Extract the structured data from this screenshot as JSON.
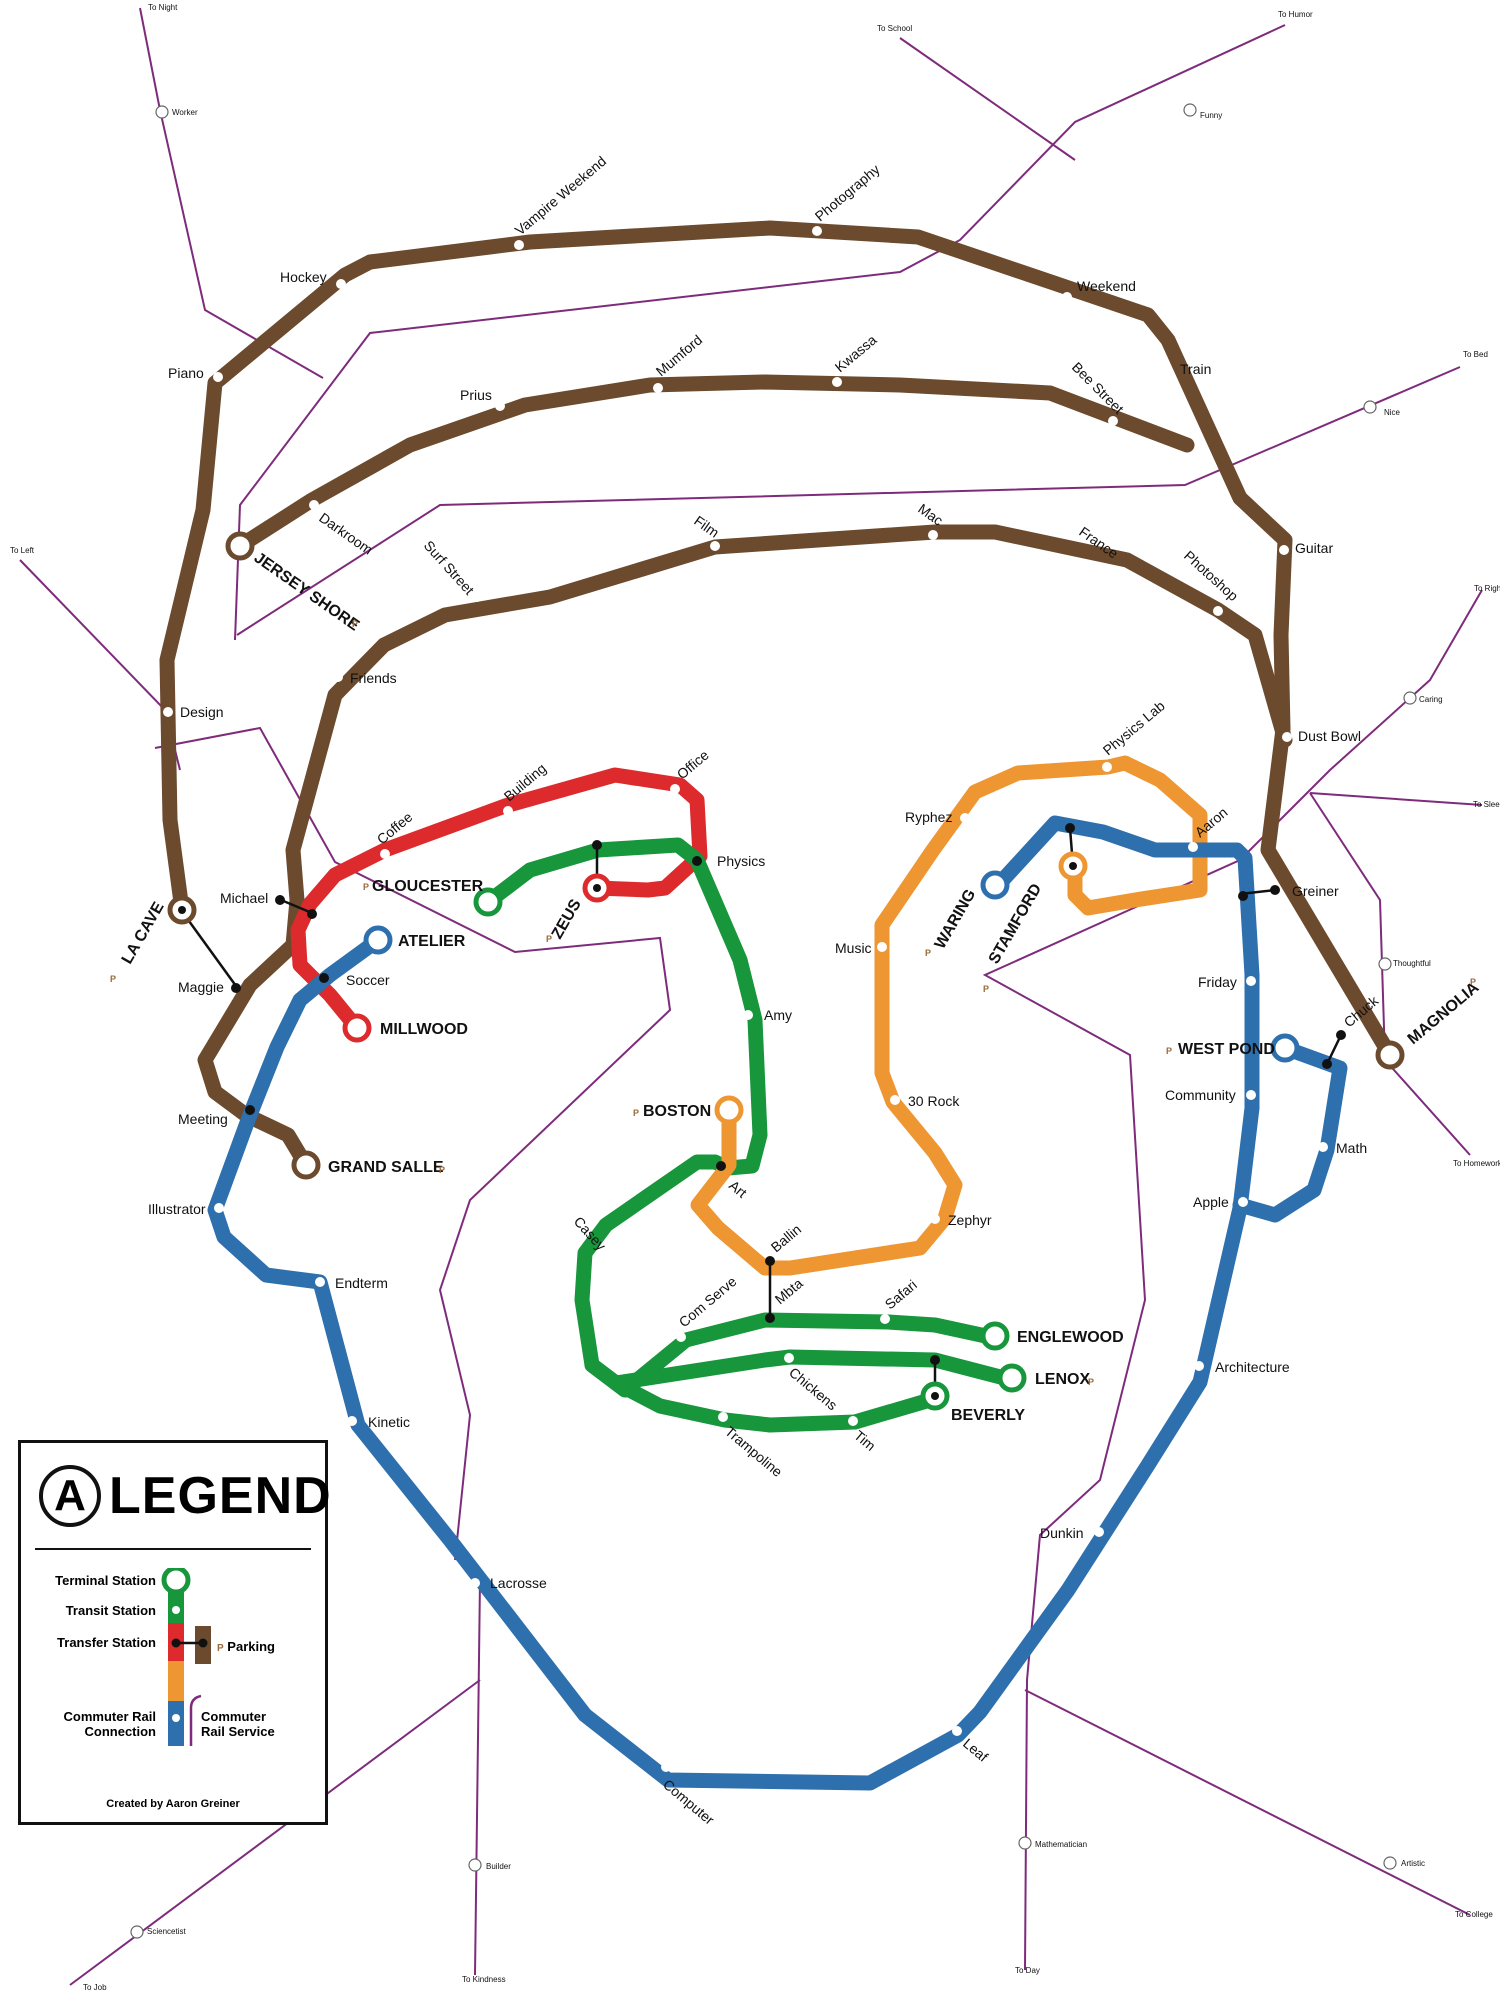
{
  "colors": {
    "brown": "#6b4a2e",
    "red": "#dd2a2c",
    "green": "#17963c",
    "orange": "#ee9632",
    "blue": "#2e6fad",
    "purple": "#7e2b7c"
  },
  "rail_terminals": [
    "To Night",
    "To School",
    "To Humor",
    "To Bed",
    "To Left",
    "To Right",
    "To Sleep",
    "To Homework",
    "To Job",
    "To Kindness",
    "To Day",
    "To College"
  ],
  "rail_stations": [
    "Worker",
    "Funny",
    "Nice",
    "Caring",
    "Thoughtful",
    "Sciencetist",
    "Builder",
    "Mathematician",
    "Artistic"
  ],
  "stations": [
    "Hockey",
    "Vampire Weekend",
    "Photography",
    "Weekend",
    "Train",
    "Piano",
    "Prius",
    "Mumford",
    "Kwassa",
    "Bee Street",
    "Darkroom",
    "Film",
    "Mac",
    "France",
    "Photoshop",
    "Surf Street",
    "Friends",
    "Guitar",
    "Design",
    "Dust Bowl",
    "Michael",
    "Maggie",
    "Meeting",
    "Greiner",
    "Chuck",
    "Coffee",
    "Building",
    "Office",
    "Physics",
    "Soccer",
    "Amy",
    "Art",
    "Casey",
    "Ballin",
    "Com Serve",
    "Mbta",
    "Safari",
    "Chickens",
    "Tim",
    "Trampoline",
    "Ryphez",
    "Physics Lab",
    "Aaron",
    "Music",
    "30 Rock",
    "Zephyr",
    "Friday",
    "Community",
    "Math",
    "Apple",
    "Illustrator",
    "Endterm",
    "Kinetic",
    "Lacrosse",
    "Computer",
    "Leaf",
    "Dunkin",
    "Architecture"
  ],
  "terminals": [
    "JERSEY SHORE",
    "LA CAVE",
    "GRAND SALLE",
    "GLOUCESTER",
    "ZEUS",
    "ATELIER",
    "MILLWOOD",
    "BOSTON",
    "ENGLEWOOD",
    "LENOX",
    "BEVERLY",
    "WARING",
    "STAMFORD",
    "WEST POND",
    "MAGNOLIA"
  ],
  "parking_mark": "P",
  "legend": {
    "badge": "A",
    "title": "LEGEND",
    "terminal": "Terminal Station",
    "transit": "Transit Station",
    "transfer": "Transfer Station",
    "parking": "Parking",
    "commuter_conn_1": "Commuter Rail",
    "commuter_conn_2": "Connection",
    "commuter_svc_1": "Commuter",
    "commuter_svc_2": "Rail Service",
    "credit": "Created by Aaron Greiner"
  }
}
